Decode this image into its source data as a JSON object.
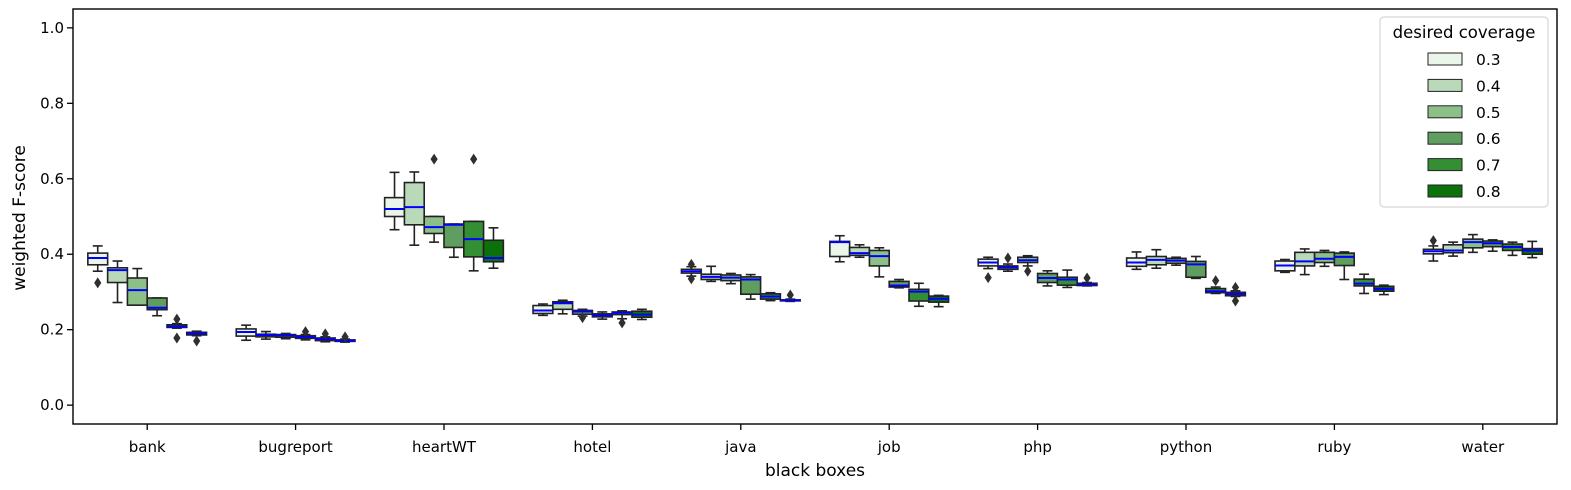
{
  "chart_data": {
    "type": "box",
    "title": "",
    "xlabel": "black boxes",
    "ylabel": "weighted F-score",
    "ylim": [
      -0.05,
      1.05
    ],
    "yticks": [
      "0.0",
      "0.2",
      "0.4",
      "0.6",
      "0.8",
      "1.0"
    ],
    "categories": [
      "bank",
      "bugreport",
      "heartWT",
      "hotel",
      "java",
      "job",
      "php",
      "python",
      "ruby",
      "water"
    ],
    "legend": {
      "title": "desired coverage",
      "position": "top-right",
      "entries": [
        {
          "label": "0.3",
          "color": "#ebf6ea"
        },
        {
          "label": "0.4",
          "color": "#bad9b9"
        },
        {
          "label": "0.5",
          "color": "#8dbf88"
        },
        {
          "label": "0.6",
          "color": "#5f9e5e"
        },
        {
          "label": "0.7",
          "color": "#348f34"
        },
        {
          "label": "0.8",
          "color": "#0b720b"
        }
      ]
    },
    "median_color": "#0000ff",
    "series": [
      {
        "name": "0.3",
        "boxes": [
          {
            "min": 0.355,
            "q1": 0.372,
            "median": 0.39,
            "q3": 0.403,
            "max": 0.422,
            "outliers": [
              0.324
            ]
          },
          {
            "min": 0.172,
            "q1": 0.183,
            "median": 0.194,
            "q3": 0.202,
            "max": 0.212,
            "outliers": []
          },
          {
            "min": 0.465,
            "q1": 0.5,
            "median": 0.52,
            "q3": 0.55,
            "max": 0.617,
            "outliers": []
          },
          {
            "min": 0.238,
            "q1": 0.243,
            "median": 0.251,
            "q3": 0.264,
            "max": 0.268,
            "outliers": []
          },
          {
            "min": 0.342,
            "q1": 0.35,
            "median": 0.355,
            "q3": 0.36,
            "max": 0.367,
            "outliers": [
              0.335,
              0.373
            ]
          },
          {
            "min": 0.38,
            "q1": 0.394,
            "median": 0.432,
            "q3": 0.434,
            "max": 0.449,
            "outliers": []
          },
          {
            "min": 0.362,
            "q1": 0.369,
            "median": 0.378,
            "q3": 0.387,
            "max": 0.392,
            "outliers": [
              0.338
            ]
          },
          {
            "min": 0.36,
            "q1": 0.368,
            "median": 0.378,
            "q3": 0.39,
            "max": 0.406,
            "outliers": []
          },
          {
            "min": 0.352,
            "q1": 0.356,
            "median": 0.37,
            "q3": 0.382,
            "max": 0.386,
            "outliers": []
          },
          {
            "min": 0.382,
            "q1": 0.401,
            "median": 0.408,
            "q3": 0.413,
            "max": 0.422,
            "outliers": [
              0.436
            ]
          }
        ]
      },
      {
        "name": "0.4",
        "boxes": [
          {
            "min": 0.272,
            "q1": 0.325,
            "median": 0.358,
            "q3": 0.364,
            "max": 0.382,
            "outliers": []
          },
          {
            "min": 0.175,
            "q1": 0.181,
            "median": 0.186,
            "q3": 0.188,
            "max": 0.195,
            "outliers": []
          },
          {
            "min": 0.424,
            "q1": 0.478,
            "median": 0.525,
            "q3": 0.59,
            "max": 0.618,
            "outliers": []
          },
          {
            "min": 0.242,
            "q1": 0.254,
            "median": 0.27,
            "q3": 0.274,
            "max": 0.278,
            "outliers": []
          },
          {
            "min": 0.328,
            "q1": 0.333,
            "median": 0.34,
            "q3": 0.347,
            "max": 0.368,
            "outliers": []
          },
          {
            "min": 0.392,
            "q1": 0.397,
            "median": 0.403,
            "q3": 0.418,
            "max": 0.425,
            "outliers": []
          },
          {
            "min": 0.355,
            "q1": 0.36,
            "median": 0.365,
            "q3": 0.369,
            "max": 0.374,
            "outliers": [
              0.39
            ]
          },
          {
            "min": 0.363,
            "q1": 0.372,
            "median": 0.385,
            "q3": 0.394,
            "max": 0.412,
            "outliers": []
          },
          {
            "min": 0.346,
            "q1": 0.369,
            "median": 0.381,
            "q3": 0.405,
            "max": 0.414,
            "outliers": []
          },
          {
            "min": 0.395,
            "q1": 0.404,
            "median": 0.41,
            "q3": 0.425,
            "max": 0.432,
            "outliers": []
          }
        ]
      },
      {
        "name": "0.5",
        "boxes": [
          {
            "min": 0.265,
            "q1": 0.265,
            "median": 0.305,
            "q3": 0.337,
            "max": 0.362,
            "outliers": []
          },
          {
            "min": 0.176,
            "q1": 0.18,
            "median": 0.185,
            "q3": 0.187,
            "max": 0.19,
            "outliers": []
          },
          {
            "min": 0.432,
            "q1": 0.455,
            "median": 0.472,
            "q3": 0.5,
            "max": 0.5,
            "outliers": [
              0.652
            ]
          },
          {
            "min": 0.236,
            "q1": 0.241,
            "median": 0.248,
            "q3": 0.251,
            "max": 0.254,
            "outliers": [
              0.232
            ]
          },
          {
            "min": 0.322,
            "q1": 0.33,
            "median": 0.338,
            "q3": 0.345,
            "max": 0.349,
            "outliers": []
          },
          {
            "min": 0.34,
            "q1": 0.369,
            "median": 0.395,
            "q3": 0.41,
            "max": 0.417,
            "outliers": []
          },
          {
            "min": 0.369,
            "q1": 0.378,
            "median": 0.384,
            "q3": 0.392,
            "max": 0.396,
            "outliers": [
              0.355
            ]
          },
          {
            "min": 0.371,
            "q1": 0.376,
            "median": 0.383,
            "q3": 0.389,
            "max": 0.392,
            "outliers": []
          },
          {
            "min": 0.368,
            "q1": 0.378,
            "median": 0.388,
            "q3": 0.405,
            "max": 0.41,
            "outliers": []
          },
          {
            "min": 0.405,
            "q1": 0.417,
            "median": 0.432,
            "q3": 0.44,
            "max": 0.452,
            "outliers": []
          }
        ]
      },
      {
        "name": "0.6",
        "boxes": [
          {
            "min": 0.237,
            "q1": 0.253,
            "median": 0.258,
            "q3": 0.284,
            "max": 0.284,
            "outliers": []
          },
          {
            "min": 0.173,
            "q1": 0.177,
            "median": 0.181,
            "q3": 0.184,
            "max": 0.187,
            "outliers": [
              0.195
            ]
          },
          {
            "min": 0.392,
            "q1": 0.418,
            "median": 0.478,
            "q3": 0.48,
            "max": 0.48,
            "outliers": []
          },
          {
            "min": 0.228,
            "q1": 0.234,
            "median": 0.238,
            "q3": 0.242,
            "max": 0.247,
            "outliers": []
          },
          {
            "min": 0.281,
            "q1": 0.294,
            "median": 0.333,
            "q3": 0.34,
            "max": 0.346,
            "outliers": []
          },
          {
            "min": 0.311,
            "q1": 0.313,
            "median": 0.317,
            "q3": 0.328,
            "max": 0.333,
            "outliers": []
          },
          {
            "min": 0.316,
            "q1": 0.325,
            "median": 0.337,
            "q3": 0.349,
            "max": 0.356,
            "outliers": []
          },
          {
            "min": 0.336,
            "q1": 0.339,
            "median": 0.373,
            "q3": 0.381,
            "max": 0.394,
            "outliers": []
          },
          {
            "min": 0.333,
            "q1": 0.37,
            "median": 0.393,
            "q3": 0.403,
            "max": 0.406,
            "outliers": []
          },
          {
            "min": 0.408,
            "q1": 0.42,
            "median": 0.429,
            "q3": 0.435,
            "max": 0.438,
            "outliers": []
          }
        ]
      },
      {
        "name": "0.7",
        "boxes": [
          {
            "min": 0.204,
            "q1": 0.206,
            "median": 0.208,
            "q3": 0.213,
            "max": 0.216,
            "outliers": [
              0.178,
              0.228
            ]
          },
          {
            "min": 0.168,
            "q1": 0.171,
            "median": 0.175,
            "q3": 0.178,
            "max": 0.181,
            "outliers": [
              0.189
            ]
          },
          {
            "min": 0.356,
            "q1": 0.393,
            "median": 0.44,
            "q3": 0.487,
            "max": 0.487,
            "outliers": [
              0.652
            ]
          },
          {
            "min": 0.229,
            "q1": 0.24,
            "median": 0.245,
            "q3": 0.247,
            "max": 0.25,
            "outliers": [
              0.218
            ]
          },
          {
            "min": 0.277,
            "q1": 0.281,
            "median": 0.288,
            "q3": 0.295,
            "max": 0.298,
            "outliers": []
          },
          {
            "min": 0.262,
            "q1": 0.276,
            "median": 0.301,
            "q3": 0.307,
            "max": 0.323,
            "outliers": []
          },
          {
            "min": 0.312,
            "q1": 0.318,
            "median": 0.333,
            "q3": 0.339,
            "max": 0.358,
            "outliers": []
          },
          {
            "min": 0.296,
            "q1": 0.298,
            "median": 0.302,
            "q3": 0.309,
            "max": 0.313,
            "outliers": [
              0.33
            ]
          },
          {
            "min": 0.296,
            "q1": 0.316,
            "median": 0.322,
            "q3": 0.334,
            "max": 0.347,
            "outliers": []
          },
          {
            "min": 0.397,
            "q1": 0.41,
            "median": 0.419,
            "q3": 0.427,
            "max": 0.432,
            "outliers": []
          }
        ]
      },
      {
        "name": "0.8",
        "boxes": [
          {
            "min": 0.184,
            "q1": 0.186,
            "median": 0.19,
            "q3": 0.193,
            "max": 0.196,
            "outliers": [
              0.17
            ]
          },
          {
            "min": 0.167,
            "q1": 0.169,
            "median": 0.171,
            "q3": 0.173,
            "max": 0.175,
            "outliers": [
              0.181
            ]
          },
          {
            "min": 0.363,
            "q1": 0.38,
            "median": 0.39,
            "q3": 0.437,
            "max": 0.47,
            "outliers": []
          },
          {
            "min": 0.227,
            "q1": 0.233,
            "median": 0.24,
            "q3": 0.249,
            "max": 0.254,
            "outliers": []
          },
          {
            "min": 0.275,
            "q1": 0.277,
            "median": 0.278,
            "q3": 0.279,
            "max": 0.281,
            "outliers": [
              0.292
            ]
          },
          {
            "min": 0.261,
            "q1": 0.273,
            "median": 0.282,
            "q3": 0.289,
            "max": 0.291,
            "outliers": []
          },
          {
            "min": 0.316,
            "q1": 0.317,
            "median": 0.32,
            "q3": 0.323,
            "max": 0.325,
            "outliers": [
              0.337
            ]
          },
          {
            "min": 0.288,
            "q1": 0.29,
            "median": 0.295,
            "q3": 0.299,
            "max": 0.303,
            "outliers": [
              0.276,
              0.312
            ]
          },
          {
            "min": 0.293,
            "q1": 0.302,
            "median": 0.308,
            "q3": 0.315,
            "max": 0.318,
            "outliers": []
          },
          {
            "min": 0.391,
            "q1": 0.4,
            "median": 0.41,
            "q3": 0.415,
            "max": 0.434,
            "outliers": []
          }
        ]
      }
    ]
  }
}
